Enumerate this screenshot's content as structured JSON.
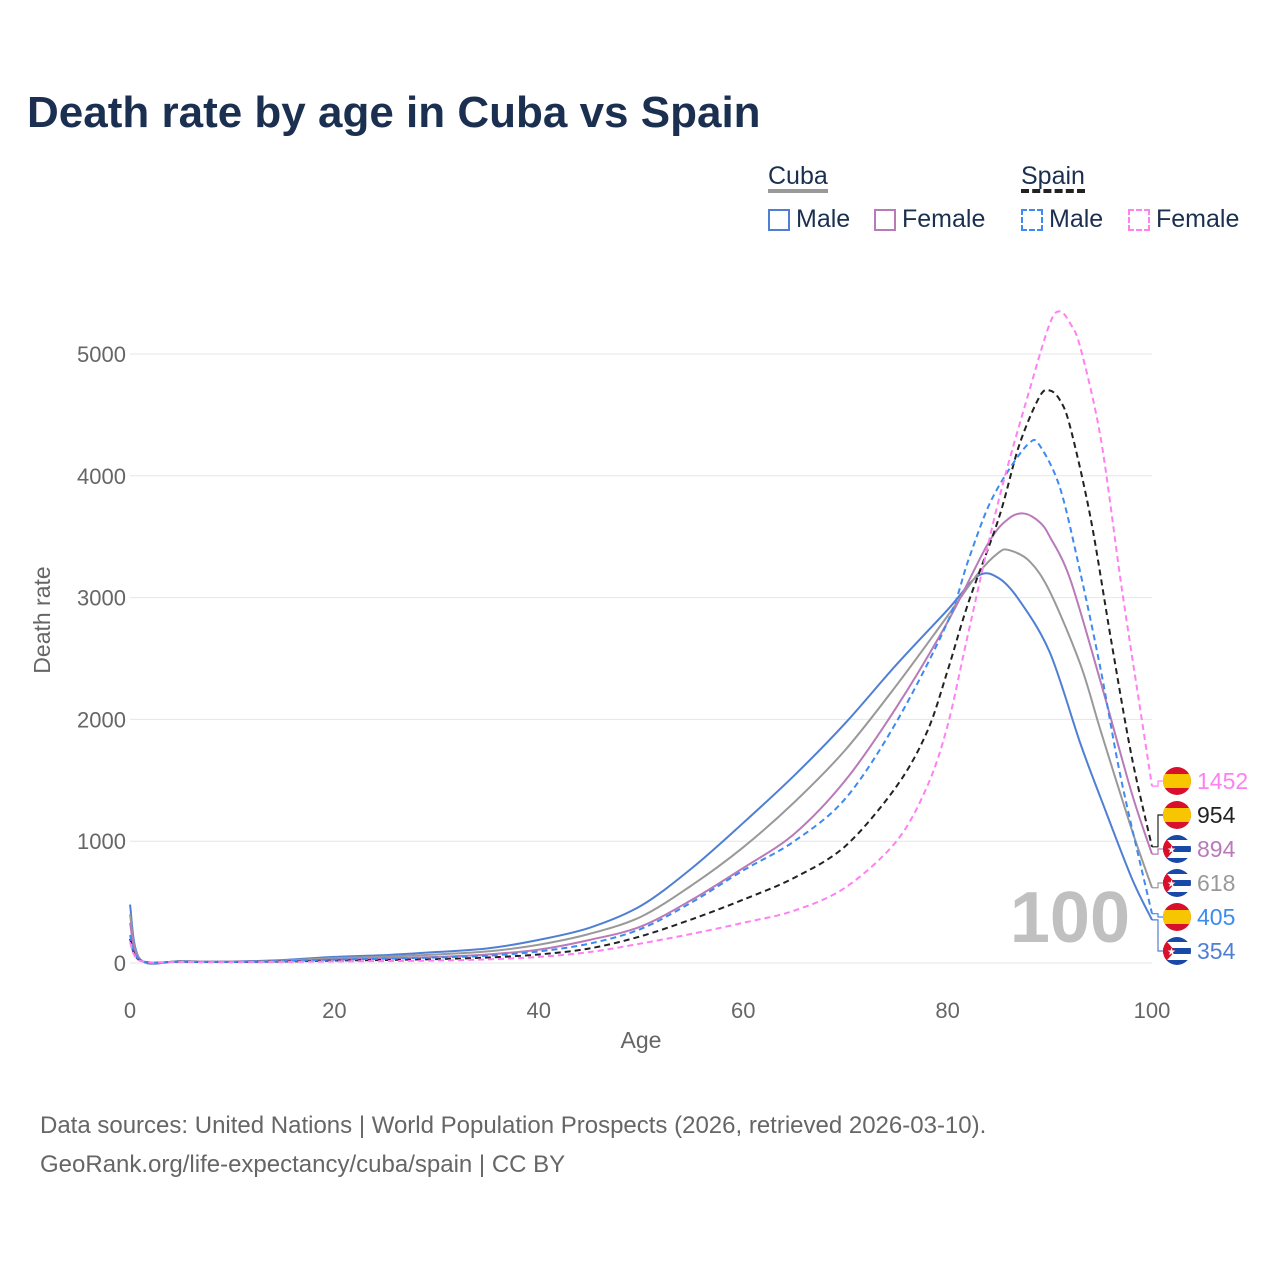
{
  "chart_data": {
    "type": "line",
    "title": "Death rate by age in Cuba vs Spain",
    "xlabel": "Age",
    "ylabel": "Death rate",
    "xlim": [
      0,
      100
    ],
    "ylim": [
      0,
      5500
    ],
    "xticks": [
      0,
      20,
      40,
      60,
      80,
      100
    ],
    "yticks": [
      0,
      1000,
      2000,
      3000,
      4000,
      5000
    ],
    "grid": true,
    "annotation": "100",
    "legend": {
      "placement": "top-right",
      "groups": [
        {
          "label": "Cuba",
          "items": [
            "Male",
            "Female"
          ]
        },
        {
          "label": "Spain",
          "items": [
            "Male",
            "Female"
          ]
        }
      ]
    },
    "series": [
      {
        "name": "Cuba Male",
        "country": "Cuba",
        "color": "#4f7fd4",
        "dash": false,
        "end_label": "354",
        "points": [
          [
            0,
            480
          ],
          [
            1,
            30
          ],
          [
            5,
            15
          ],
          [
            10,
            12
          ],
          [
            15,
            25
          ],
          [
            20,
            50
          ],
          [
            25,
            65
          ],
          [
            30,
            90
          ],
          [
            35,
            120
          ],
          [
            40,
            190
          ],
          [
            45,
            290
          ],
          [
            50,
            470
          ],
          [
            55,
            780
          ],
          [
            60,
            1150
          ],
          [
            65,
            1540
          ],
          [
            70,
            1970
          ],
          [
            75,
            2450
          ],
          [
            80,
            2900
          ],
          [
            83,
            3180
          ],
          [
            85,
            3160
          ],
          [
            87,
            2980
          ],
          [
            90,
            2550
          ],
          [
            93,
            1800
          ],
          [
            95,
            1350
          ],
          [
            98,
            700
          ],
          [
            100,
            354
          ]
        ]
      },
      {
        "name": "Cuba Total",
        "country": "Cuba",
        "color": "#999999",
        "dash": false,
        "end_label": "618",
        "points": [
          [
            0,
            400
          ],
          [
            1,
            28
          ],
          [
            5,
            14
          ],
          [
            10,
            11
          ],
          [
            15,
            20
          ],
          [
            20,
            40
          ],
          [
            25,
            52
          ],
          [
            30,
            70
          ],
          [
            35,
            95
          ],
          [
            40,
            150
          ],
          [
            45,
            240
          ],
          [
            50,
            380
          ],
          [
            55,
            640
          ],
          [
            60,
            950
          ],
          [
            65,
            1320
          ],
          [
            70,
            1750
          ],
          [
            75,
            2280
          ],
          [
            80,
            2850
          ],
          [
            83,
            3200
          ],
          [
            85,
            3370
          ],
          [
            86,
            3390
          ],
          [
            88,
            3300
          ],
          [
            90,
            3050
          ],
          [
            93,
            2450
          ],
          [
            95,
            1900
          ],
          [
            98,
            1100
          ],
          [
            100,
            618
          ]
        ]
      },
      {
        "name": "Cuba Female",
        "country": "Cuba",
        "color": "#b87ab8",
        "dash": false,
        "end_label": "894",
        "points": [
          [
            0,
            330
          ],
          [
            1,
            25
          ],
          [
            5,
            12
          ],
          [
            10,
            10
          ],
          [
            15,
            15
          ],
          [
            20,
            28
          ],
          [
            25,
            38
          ],
          [
            30,
            50
          ],
          [
            35,
            70
          ],
          [
            40,
            110
          ],
          [
            45,
            190
          ],
          [
            50,
            300
          ],
          [
            55,
            520
          ],
          [
            60,
            780
          ],
          [
            65,
            1060
          ],
          [
            70,
            1500
          ],
          [
            75,
            2100
          ],
          [
            80,
            2800
          ],
          [
            84,
            3450
          ],
          [
            86,
            3650
          ],
          [
            87.5,
            3690
          ],
          [
            89,
            3620
          ],
          [
            90,
            3500
          ],
          [
            92,
            3150
          ],
          [
            95,
            2300
          ],
          [
            98,
            1400
          ],
          [
            100,
            894
          ]
        ]
      },
      {
        "name": "Spain Total",
        "country": "Spain",
        "color": "#222222",
        "dash": true,
        "end_label": "954",
        "points": [
          [
            0,
            200
          ],
          [
            1,
            20
          ],
          [
            5,
            10
          ],
          [
            10,
            8
          ],
          [
            15,
            12
          ],
          [
            20,
            20
          ],
          [
            25,
            25
          ],
          [
            30,
            32
          ],
          [
            35,
            45
          ],
          [
            40,
            70
          ],
          [
            45,
            120
          ],
          [
            50,
            220
          ],
          [
            55,
            360
          ],
          [
            60,
            520
          ],
          [
            65,
            700
          ],
          [
            70,
            960
          ],
          [
            75,
            1450
          ],
          [
            78,
            1900
          ],
          [
            80,
            2400
          ],
          [
            82,
            2950
          ],
          [
            85,
            3650
          ],
          [
            87,
            4250
          ],
          [
            89,
            4650
          ],
          [
            90,
            4700
          ],
          [
            91,
            4620
          ],
          [
            92,
            4400
          ],
          [
            94,
            3650
          ],
          [
            96,
            2650
          ],
          [
            98,
            1700
          ],
          [
            100,
            954
          ]
        ]
      },
      {
        "name": "Spain Male",
        "country": "Spain",
        "color": "#3d8bf0",
        "dash": true,
        "end_label": "405",
        "points": [
          [
            0,
            230
          ],
          [
            1,
            22
          ],
          [
            5,
            11
          ],
          [
            10,
            9
          ],
          [
            15,
            15
          ],
          [
            20,
            28
          ],
          [
            25,
            35
          ],
          [
            30,
            45
          ],
          [
            35,
            60
          ],
          [
            40,
            95
          ],
          [
            45,
            160
          ],
          [
            50,
            280
          ],
          [
            55,
            500
          ],
          [
            60,
            760
          ],
          [
            65,
            1000
          ],
          [
            70,
            1350
          ],
          [
            75,
            1980
          ],
          [
            80,
            2800
          ],
          [
            82,
            3300
          ],
          [
            84,
            3750
          ],
          [
            86,
            4050
          ],
          [
            88,
            4270
          ],
          [
            89,
            4250
          ],
          [
            91,
            3900
          ],
          [
            93,
            3200
          ],
          [
            95,
            2400
          ],
          [
            97,
            1500
          ],
          [
            100,
            405
          ]
        ]
      },
      {
        "name": "Spain Female",
        "country": "Spain",
        "color": "#ff80f0",
        "dash": true,
        "end_label": "1452",
        "points": [
          [
            0,
            170
          ],
          [
            1,
            18
          ],
          [
            5,
            9
          ],
          [
            10,
            7
          ],
          [
            15,
            9
          ],
          [
            20,
            13
          ],
          [
            25,
            16
          ],
          [
            30,
            20
          ],
          [
            35,
            30
          ],
          [
            40,
            50
          ],
          [
            45,
            90
          ],
          [
            50,
            160
          ],
          [
            55,
            240
          ],
          [
            60,
            330
          ],
          [
            65,
            430
          ],
          [
            70,
            620
          ],
          [
            75,
            1000
          ],
          [
            78,
            1450
          ],
          [
            80,
            1950
          ],
          [
            82,
            2700
          ],
          [
            85,
            3800
          ],
          [
            88,
            4700
          ],
          [
            90,
            5250
          ],
          [
            91,
            5350
          ],
          [
            92,
            5250
          ],
          [
            93,
            5050
          ],
          [
            95,
            4300
          ],
          [
            97,
            3100
          ],
          [
            99,
            2000
          ],
          [
            100,
            1452
          ]
        ]
      }
    ]
  },
  "legend_labels": {
    "cuba": "Cuba",
    "spain": "Spain",
    "male": "Male",
    "female": "Female"
  },
  "footer": {
    "line1": "Data sources: United Nations | World Population Prospects (2026, retrieved 2026-03-10).",
    "line2": "GeoRank.org/life-expectancy/cuba/spain | CC BY"
  }
}
